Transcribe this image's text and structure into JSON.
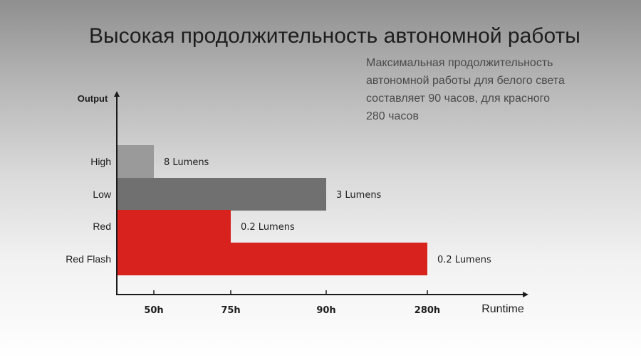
{
  "title": "Высокая продолжительность автономной работы",
  "note_lines": [
    "Максимальная продолжительность",
    "автономной работы для белого света",
    "составляет 90 часов, для красного",
    "280 часов"
  ],
  "colors": {
    "grey_light": "#9a9a9a",
    "grey_dark": "#707070",
    "red": "#d8221d",
    "axis": "#1a1a1a"
  },
  "chart_data": {
    "type": "bar",
    "orientation": "horizontal",
    "ylabel": "Output",
    "xlabel": "Runtime",
    "categories": [
      "High",
      "Low",
      "Red",
      "Red Flash"
    ],
    "values": [
      50,
      90,
      75,
      280
    ],
    "value_labels": [
      "8 Lumens",
      "3 Lumens",
      "0.2 Lumens",
      "0.2 Lumens"
    ],
    "x_ticks": [
      50,
      75,
      90,
      280
    ],
    "x_tick_labels": [
      "50h",
      "75h",
      "90h",
      "280h"
    ],
    "x_scale": "categorical-spaced",
    "bar_colors": [
      "#9a9a9a",
      "#707070",
      "#d8221d",
      "#d8221d"
    ],
    "grid": false,
    "legend": "none"
  }
}
